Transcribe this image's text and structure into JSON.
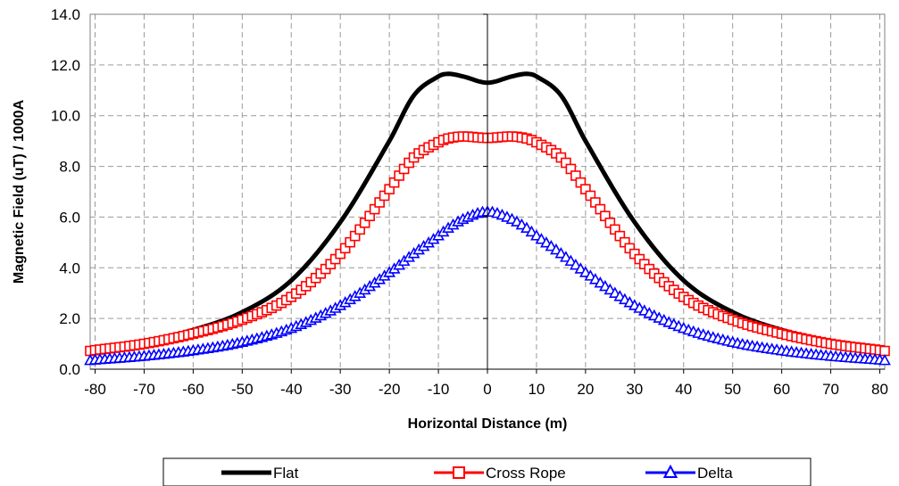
{
  "chart_data": {
    "type": "line",
    "xlabel": "Horizontal Distance (m)",
    "ylabel": "Magnetic Field (uT) / 1000A",
    "xlim": [
      -81,
      81
    ],
    "ylim": [
      0,
      14
    ],
    "x_ticks": [
      -80,
      -70,
      -60,
      -50,
      -40,
      -30,
      -20,
      -10,
      0,
      10,
      20,
      30,
      40,
      50,
      60,
      70,
      80
    ],
    "x_tick_labels": [
      "-80",
      "-70",
      "-60",
      "-50",
      "-40",
      "-30",
      "-20",
      "-10",
      "0",
      "10",
      "20",
      "30",
      "40",
      "50",
      "60",
      "70",
      "80"
    ],
    "y_ticks": [
      0,
      2,
      4,
      6,
      8,
      10,
      12,
      14
    ],
    "y_tick_labels": [
      "0.0",
      "2.0",
      "4.0",
      "6.0",
      "8.0",
      "10.0",
      "12.0",
      "14.0"
    ],
    "grid": true,
    "legend_position": "bottom",
    "x": [
      -81,
      -80,
      -70,
      -60,
      -50,
      -40,
      -30,
      -20,
      -15,
      -10,
      -8,
      -5,
      0,
      5,
      8,
      10,
      15,
      20,
      30,
      40,
      50,
      60,
      70,
      80,
      81
    ],
    "series": [
      {
        "name": "Flat",
        "color": "#000000",
        "marker": "none",
        "values": [
          0.75,
          0.78,
          1.1,
          1.55,
          2.25,
          3.5,
          5.8,
          9.0,
          10.8,
          11.55,
          11.65,
          11.55,
          11.3,
          11.55,
          11.65,
          11.55,
          10.8,
          9.0,
          5.8,
          3.5,
          2.25,
          1.55,
          1.1,
          0.78,
          0.75
        ]
      },
      {
        "name": "Cross Rope",
        "color": "#ff0000",
        "marker": "square",
        "values": [
          0.72,
          0.75,
          1.0,
          1.4,
          1.95,
          2.85,
          4.55,
          7.1,
          8.35,
          8.95,
          9.1,
          9.18,
          9.12,
          9.18,
          9.1,
          8.95,
          8.35,
          7.1,
          4.55,
          2.85,
          1.95,
          1.4,
          1.0,
          0.75,
          0.72
        ]
      },
      {
        "name": "Delta",
        "color": "#0000ff",
        "marker": "triangle",
        "values": [
          0.33,
          0.35,
          0.5,
          0.72,
          1.05,
          1.6,
          2.5,
          3.8,
          4.55,
          5.25,
          5.55,
          5.9,
          6.2,
          5.9,
          5.55,
          5.25,
          4.55,
          3.8,
          2.5,
          1.6,
          1.05,
          0.72,
          0.5,
          0.35,
          0.33
        ]
      }
    ]
  }
}
